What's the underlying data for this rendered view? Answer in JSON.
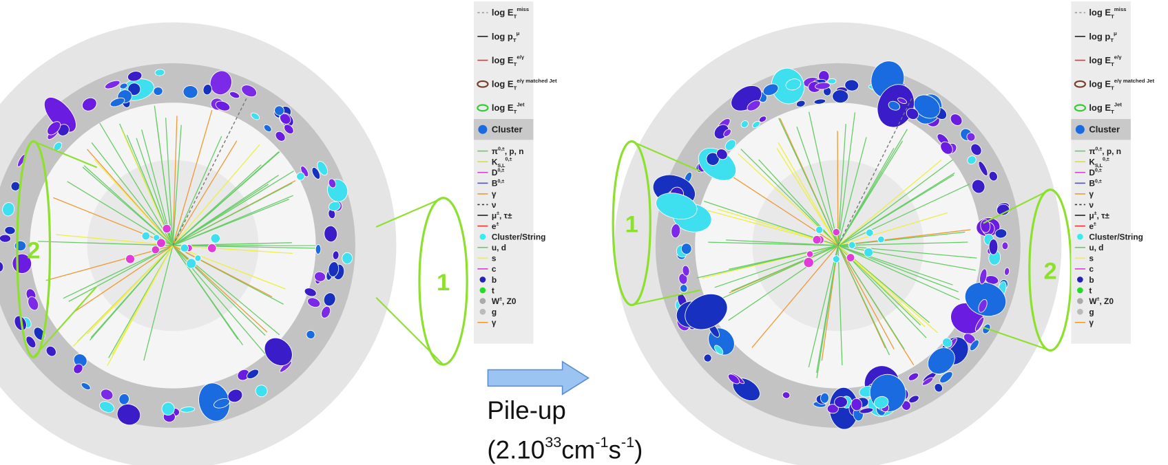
{
  "left_display": {
    "jet_labels": [
      "2",
      "1"
    ]
  },
  "right_display": {
    "jet_labels": [
      "1",
      "2"
    ]
  },
  "legends": [
    {
      "items": [
        {
          "base": "log E",
          "sub": "T",
          "sup": "miss"
        },
        {
          "base": "log p",
          "sub": "T",
          "sup": "μ"
        },
        {
          "base": "log E",
          "sub": "T",
          "sup": "e/γ"
        },
        {
          "base": "log E",
          "sub": "T",
          "sup": "e/γ matched Jet"
        },
        {
          "base": "log E",
          "sub": "T",
          "sup": "Jet"
        },
        {
          "base": "Cluster"
        },
        {
          "base": "π",
          "sup": "0,±",
          "tail": ", p, n"
        },
        {
          "base": "K",
          "sup": "0,±",
          "sub": "S,L"
        },
        {
          "base": "D",
          "sup": "0,±"
        },
        {
          "base": "B",
          "sup": "0,±"
        },
        {
          "base": "γ"
        },
        {
          "base": "ν"
        },
        {
          "base": "μ",
          "sup": "±",
          "tail": ", τ±"
        },
        {
          "base": "e",
          "sup": "±"
        },
        {
          "base": "Cluster/String"
        },
        {
          "base": "u, d"
        },
        {
          "base": "s"
        },
        {
          "base": "c"
        },
        {
          "base": "b"
        },
        {
          "base": "t"
        },
        {
          "base": "W",
          "sup": "±",
          "tail": ", Z0"
        },
        {
          "base": "g"
        },
        {
          "base": "γ"
        }
      ]
    },
    {
      "items": [
        {
          "base": "log E",
          "sub": "T",
          "sup": "miss"
        },
        {
          "base": "log p",
          "sub": "T",
          "sup": "μ"
        },
        {
          "base": "log E",
          "sub": "T",
          "sup": "e/γ"
        },
        {
          "base": "log E",
          "sub": "T",
          "sup": "e/γ matched Jet"
        },
        {
          "base": "log E",
          "sub": "T",
          "sup": "Jet"
        },
        {
          "base": "Cluster"
        },
        {
          "base": "π",
          "sup": "0,±",
          "tail": ", p, n"
        },
        {
          "base": "K",
          "sup": "0,±",
          "sub": "S,L"
        },
        {
          "base": "D",
          "sup": "0,±"
        },
        {
          "base": "B",
          "sup": "0,±"
        },
        {
          "base": "γ"
        },
        {
          "base": "ν"
        },
        {
          "base": "μ",
          "sup": "±",
          "tail": ", τ±"
        },
        {
          "base": "e",
          "sup": "±"
        },
        {
          "base": "Cluster/String"
        },
        {
          "base": "u, d"
        },
        {
          "base": "s"
        },
        {
          "base": "c"
        },
        {
          "base": "b"
        },
        {
          "base": "t"
        },
        {
          "base": "W",
          "sup": "±",
          "tail": ", Z0"
        },
        {
          "base": "g"
        },
        {
          "base": "γ"
        }
      ]
    }
  ],
  "arrow_label": {
    "line1": "Pile-up",
    "rate_parts": [
      {
        "base": "(2.10",
        "sup": "33"
      },
      {
        "base": "cm",
        "sup": "-1"
      },
      {
        "base": "s",
        "sup": "-1",
        "tail": ")"
      }
    ]
  }
}
